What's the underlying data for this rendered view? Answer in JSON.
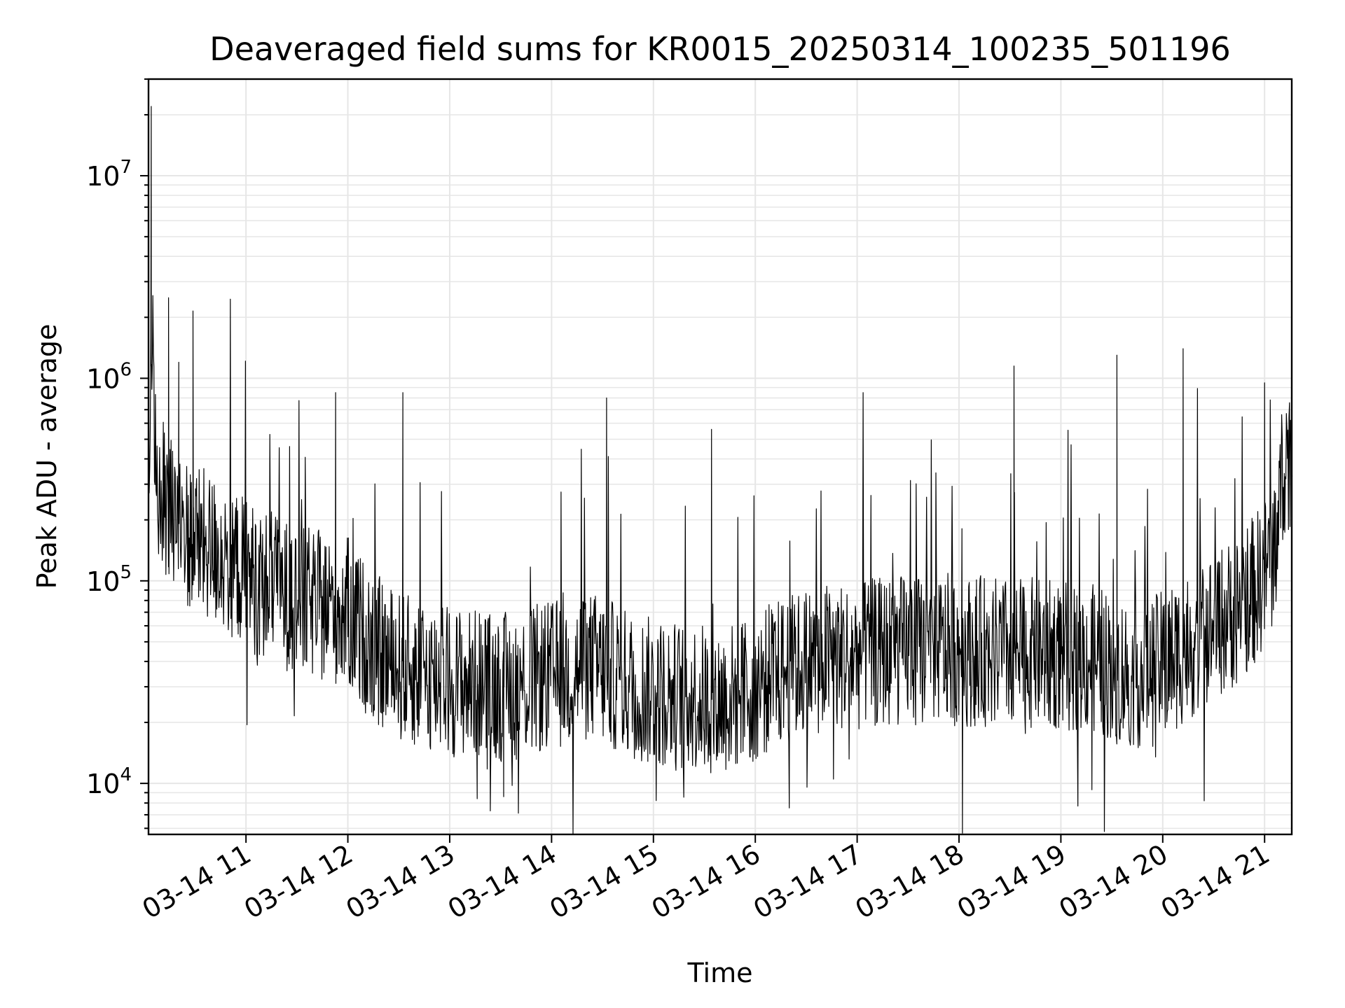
{
  "chart_data": {
    "type": "line",
    "title": "Deaveraged field sums for KR0015_20250314_100235_501196",
    "xlabel": "Time",
    "ylabel": "Peak ADU - average",
    "x_ticks": [
      "03-14 11",
      "03-14 12",
      "03-14 13",
      "03-14 14",
      "03-14 15",
      "03-14 16",
      "03-14 17",
      "03-14 18",
      "03-14 19",
      "03-14 20",
      "03-14 21"
    ],
    "x_tick_hours": [
      11,
      12,
      13,
      14,
      15,
      16,
      17,
      18,
      19,
      20,
      21
    ],
    "x_tick_rotation_deg": 30,
    "xlim": [
      "2025-03-14T10:02:35",
      "2025-03-14T21:16:00"
    ],
    "y_scale": "log",
    "ylim": [
      5600,
      30000000
    ],
    "y_ticks": [
      {
        "base": "10",
        "exp": "4",
        "value": 10000
      },
      {
        "base": "10",
        "exp": "5",
        "value": 100000
      },
      {
        "base": "10",
        "exp": "6",
        "value": 1000000
      },
      {
        "base": "10",
        "exp": "7",
        "value": 10000000
      }
    ],
    "grid": true,
    "series": [
      {
        "color": "#000000",
        "x_hours": [
          10.04,
          10.05,
          10.08,
          10.12,
          10.2,
          10.3,
          10.4,
          10.5,
          10.6,
          10.7,
          10.8,
          10.9,
          11.0,
          11.1,
          11.2,
          11.3,
          11.4,
          11.5,
          11.6,
          11.7,
          11.8,
          11.9,
          12.0,
          12.1,
          12.2,
          12.3,
          12.4,
          12.5,
          12.6,
          12.7,
          12.8,
          12.9,
          13.0,
          13.1,
          13.2,
          13.3,
          13.4,
          13.5,
          13.6,
          13.7,
          13.8,
          13.9,
          14.0,
          14.1,
          14.2,
          14.3,
          14.4,
          14.5,
          14.6,
          14.7,
          14.8,
          14.9,
          15.0,
          15.1,
          15.2,
          15.3,
          15.4,
          15.5,
          15.6,
          15.7,
          15.8,
          15.9,
          16.0,
          16.1,
          16.2,
          16.3,
          16.4,
          16.5,
          16.6,
          16.7,
          16.8,
          16.9,
          17.0,
          17.1,
          17.2,
          17.3,
          17.4,
          17.5,
          17.6,
          17.7,
          17.8,
          17.9,
          18.0,
          18.1,
          18.2,
          18.3,
          18.4,
          18.5,
          18.6,
          18.7,
          18.8,
          18.9,
          19.0,
          19.1,
          19.2,
          19.3,
          19.4,
          19.5,
          19.6,
          19.7,
          19.8,
          19.9,
          20.0,
          20.1,
          20.2,
          20.3,
          20.4,
          20.5,
          20.6,
          20.7,
          20.8,
          20.9,
          21.0,
          21.1,
          21.15,
          21.2,
          21.27
        ],
        "y_typical": [
          500000,
          400000,
          2000000,
          300000,
          250000,
          200000,
          180000,
          160000,
          150000,
          140000,
          130000,
          120000,
          110000,
          100000,
          95000,
          90000,
          85000,
          80000,
          78000,
          76000,
          74000,
          72000,
          70000,
          60000,
          50000,
          45000,
          40000,
          38000,
          36000,
          35000,
          34000,
          33000,
          32000,
          32000,
          31000,
          31000,
          30000,
          30000,
          30000,
          31000,
          32000,
          33000,
          34000,
          35000,
          36000,
          37000,
          38000,
          36000,
          34000,
          32000,
          30000,
          29000,
          28000,
          28000,
          27000,
          27000,
          27000,
          26000,
          26000,
          26000,
          27000,
          28000,
          30000,
          32000,
          34000,
          36000,
          38000,
          40000,
          41000,
          42000,
          42000,
          43000,
          43000,
          44000,
          44000,
          45000,
          45000,
          46000,
          46000,
          46000,
          46000,
          46000,
          45000,
          45000,
          45000,
          45000,
          44000,
          44000,
          44000,
          44000,
          44000,
          43000,
          43000,
          42000,
          42000,
          41000,
          40000,
          38000,
          36000,
          35000,
          35000,
          36000,
          38000,
          42000,
          46000,
          50000,
          55000,
          60000,
          65000,
          70000,
          80000,
          90000,
          110000,
          150000,
          250000,
          400000,
          450000
        ],
        "spikes": [
          {
            "x_hour": 10.07,
            "y": 22000000
          },
          {
            "x_hour": 10.07,
            "y": 9500000
          },
          {
            "x_hour": 10.24,
            "y": 2500000
          },
          {
            "x_hour": 10.48,
            "y": 2150000
          },
          {
            "x_hour": 10.34,
            "y": 1200000
          },
          {
            "x_hour": 11.88,
            "y": 850000
          },
          {
            "x_hour": 12.54,
            "y": 850000
          },
          {
            "x_hour": 14.54,
            "y": 800000
          },
          {
            "x_hour": 15.57,
            "y": 560000
          },
          {
            "x_hour": 18.54,
            "y": 1150000
          },
          {
            "x_hour": 19.55,
            "y": 1300000
          },
          {
            "x_hour": 20.2,
            "y": 1400000
          },
          {
            "x_hour": 21.0,
            "y": 950000
          }
        ],
        "dips": [
          {
            "x_hour": 13.27,
            "y": 8400
          },
          {
            "x_hour": 13.53,
            "y": 8600
          },
          {
            "x_hour": 15.95,
            "y": 13500
          },
          {
            "x_hour": 19.93,
            "y": 13500
          }
        ]
      }
    ]
  }
}
